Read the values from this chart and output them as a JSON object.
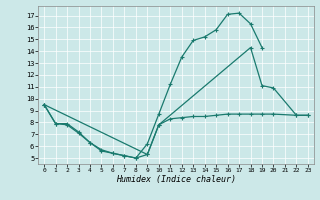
{
  "xlabel": "Humidex (Indice chaleur)",
  "bg_color": "#cce8e8",
  "line_color": "#1a7a6e",
  "xlim": [
    -0.5,
    23.5
  ],
  "ylim": [
    4.5,
    17.8
  ],
  "xticks": [
    0,
    1,
    2,
    3,
    4,
    5,
    6,
    7,
    8,
    9,
    10,
    11,
    12,
    13,
    14,
    15,
    16,
    17,
    18,
    19,
    20,
    21,
    22,
    23
  ],
  "yticks": [
    5,
    6,
    7,
    8,
    9,
    10,
    11,
    12,
    13,
    14,
    15,
    16,
    17
  ],
  "curve1_x": [
    0,
    1,
    2,
    3,
    4,
    5,
    6,
    7,
    8,
    9,
    10,
    11,
    12,
    13,
    14,
    15,
    16,
    17,
    18,
    19
  ],
  "curve1_y": [
    9.5,
    7.9,
    7.9,
    7.2,
    6.3,
    5.7,
    5.4,
    5.2,
    5.0,
    6.2,
    8.7,
    11.2,
    13.5,
    14.9,
    15.2,
    15.8,
    17.1,
    17.2,
    16.3,
    14.3
  ],
  "curve2_x": [
    0,
    1,
    2,
    3,
    4,
    5,
    6,
    7,
    8,
    9,
    10,
    11,
    12,
    13,
    14,
    15,
    16,
    17,
    18,
    19,
    20,
    22,
    23
  ],
  "curve2_y": [
    9.5,
    7.9,
    7.8,
    7.1,
    6.3,
    5.6,
    5.4,
    5.2,
    5.0,
    5.3,
    7.8,
    8.3,
    8.4,
    8.5,
    8.5,
    8.6,
    8.7,
    8.7,
    8.7,
    8.7,
    8.7,
    8.6,
    8.6
  ],
  "curve3_x": [
    0,
    9,
    10,
    18,
    19,
    20,
    22,
    23
  ],
  "curve3_y": [
    9.5,
    5.3,
    7.8,
    14.3,
    11.1,
    10.9,
    8.6,
    8.6
  ]
}
